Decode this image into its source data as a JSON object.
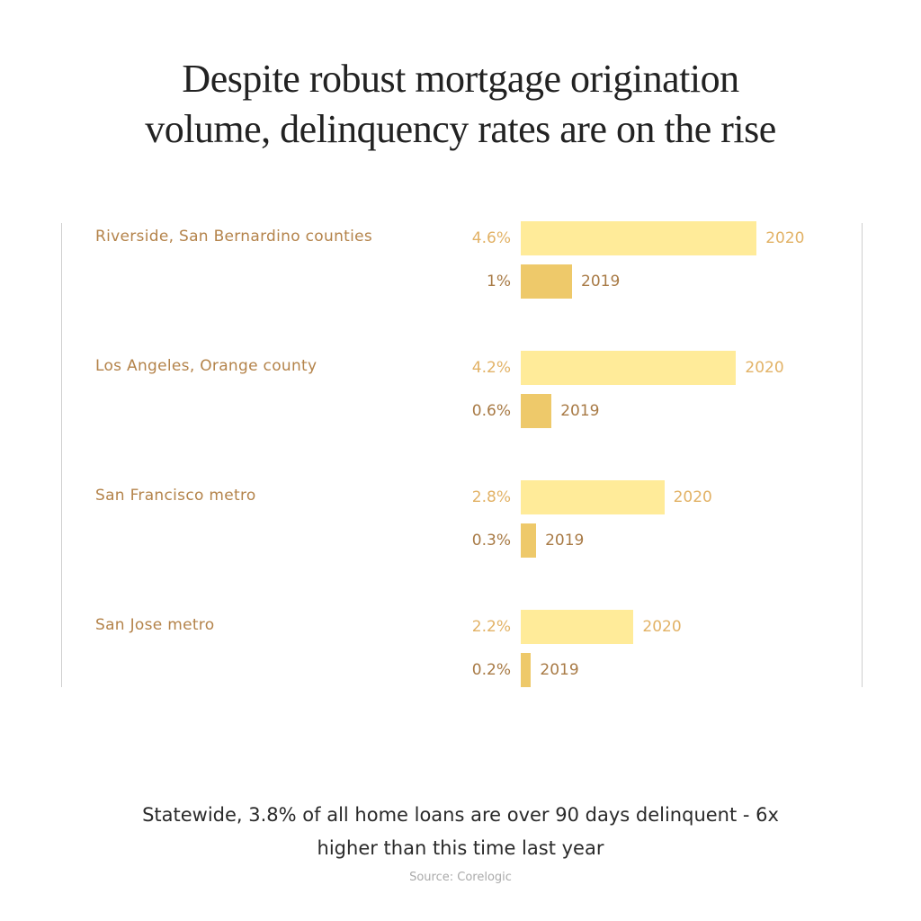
{
  "title_line1": "Despite robust mortgage origination",
  "title_line2": "volume, delinquency rates are on the rise",
  "groups": [
    {
      "label": "Riverside, San Bernardino counties",
      "v2020": "4.6%",
      "v2019": "1%",
      "y2020": "2020",
      "y2019": "2019"
    },
    {
      "label": "Los Angeles, Orange county",
      "v2020": "4.2%",
      "v2019": "0.6%",
      "y2020": "2020",
      "y2019": "2019"
    },
    {
      "label": "San Francisco metro",
      "v2020": "2.8%",
      "v2019": "0.3%",
      "y2020": "2020",
      "y2019": "2019"
    },
    {
      "label": "San Jose metro",
      "v2020": "2.2%",
      "v2019": "0.2%",
      "y2020": "2020",
      "y2019": "2019"
    }
  ],
  "footer_line1": "Statewide, 3.8% of all home loans are over 90 days delinquent - 6x",
  "footer_line2": "higher than this time last year",
  "source": "Source: Corelogic",
  "colors": {
    "bar_2020": "#FFEB99",
    "bar_2019": "#EEC96A",
    "label": "#B4834A"
  },
  "chart_data": {
    "type": "bar",
    "orientation": "horizontal",
    "title": "Despite robust mortgage origination volume, delinquency rates are on the rise",
    "categories": [
      "Riverside, San Bernardino counties",
      "Los Angeles, Orange county",
      "San Francisco metro",
      "San Jose metro"
    ],
    "series": [
      {
        "name": "2020",
        "values": [
          4.6,
          4.2,
          2.8,
          2.2
        ],
        "color": "#FFEB99"
      },
      {
        "name": "2019",
        "values": [
          1.0,
          0.6,
          0.3,
          0.2
        ],
        "color": "#EEC96A"
      }
    ],
    "unit": "%",
    "xlabel": "",
    "ylabel": "",
    "grid": false,
    "annotation": "Statewide, 3.8% of all home loans are over 90 days delinquent - 6x higher than this time last year",
    "source": "Source: Corelogic"
  }
}
